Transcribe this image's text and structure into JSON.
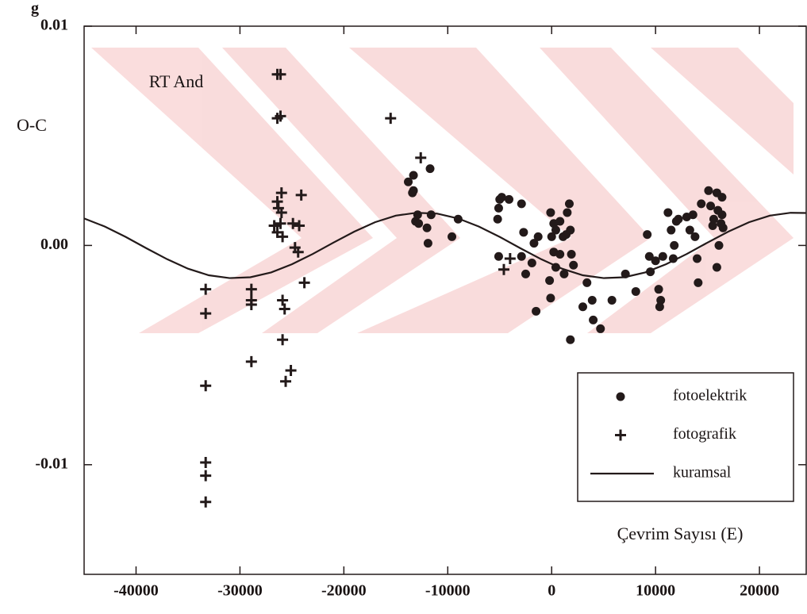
{
  "chart_data": {
    "type": "scatter",
    "title": "RT And",
    "y_label": "O-C",
    "y_unit": "g",
    "x_label": "Çevrim Sayısı (E)",
    "xlim": [
      -45000,
      24500
    ],
    "ylim": [
      -0.015,
      0.01
    ],
    "xticks": [
      -40000,
      -30000,
      -20000,
      -10000,
      0,
      10000,
      20000
    ],
    "yticks": [
      {
        "value": 0.01,
        "label": "0.01"
      },
      {
        "value": 0,
        "label": "0.00"
      },
      {
        "value": -0.01,
        "label": "-0.01"
      }
    ],
    "legend": "lower right",
    "series": [
      {
        "name": "fotoelektrik",
        "marker": "circle",
        "color": "#231a1a",
        "x": [
          -13800,
          -13300,
          -13300,
          -13400,
          -13100,
          -12800,
          -12900,
          -11700,
          -11600,
          -12000,
          -11900,
          -9600,
          -9000,
          -5000,
          -4800,
          -4100,
          -2900,
          -5100,
          -5200,
          -5100,
          -2700,
          -2900,
          -2500,
          -1700,
          -1500,
          -1300,
          -1900,
          -100,
          200,
          400,
          0,
          200,
          400,
          -200,
          -100,
          800,
          1100,
          800,
          1200,
          1500,
          1400,
          1700,
          1800,
          1900,
          2100,
          1800,
          3400,
          3000,
          3900,
          4000,
          4700,
          5800,
          7100,
          8100,
          9200,
          9400,
          9500,
          10000,
          10300,
          10500,
          10400,
          10700,
          11200,
          11500,
          11800,
          11700,
          12000,
          12200,
          13000,
          13300,
          13600,
          13800,
          14000,
          14100,
          14400,
          15100,
          15300,
          15500,
          15600,
          15900,
          16000,
          16100,
          16300,
          15900,
          16400,
          16500,
          16400
        ],
        "values": [
          0.0029,
          0.0032,
          0.0025,
          0.0024,
          0.0011,
          0.001,
          0.0014,
          0.0035,
          0.0014,
          0.0008,
          0.0001,
          0.0004,
          0.0012,
          0.0021,
          0.0022,
          0.0021,
          0.0019,
          0.0017,
          0.0012,
          -0.0005,
          0.0006,
          -0.0005,
          -0.0013,
          0.0001,
          -0.003,
          0.0004,
          -0.0008,
          0.0015,
          0.001,
          0.0007,
          0.0004,
          -0.0003,
          -0.001,
          -0.0016,
          -0.0024,
          0.0011,
          0.0004,
          -0.0004,
          -0.0013,
          0.0015,
          0.0005,
          0.0019,
          0.0007,
          -0.0004,
          -0.0009,
          -0.0043,
          -0.0017,
          -0.0028,
          -0.0025,
          -0.0034,
          -0.0038,
          -0.0025,
          -0.0013,
          -0.0021,
          0.0005,
          -0.0005,
          -0.0012,
          -0.0007,
          -0.002,
          -0.0025,
          -0.0028,
          -0.0005,
          0.0015,
          0.0007,
          0,
          -0.0006,
          0.0011,
          0.0012,
          0.0013,
          0.0007,
          0.0014,
          0.0004,
          -0.0006,
          -0.0017,
          0.0019,
          0.0025,
          0.0018,
          0.0009,
          0.0012,
          0.0024,
          0.0016,
          0,
          0.001,
          -0.001,
          0.0022,
          0.0008,
          0.0014
        ]
      },
      {
        "name": "fotografik",
        "marker": "plus",
        "color": "#231a1a",
        "x": [
          -33300,
          -33300,
          -33300,
          -33300,
          -33300,
          -33300,
          -28900,
          -28900,
          -28900,
          -28900,
          -26400,
          -26100,
          -26400,
          -26100,
          -26400,
          -26000,
          -26300,
          -26000,
          -26700,
          -26100,
          -26400,
          -25900,
          -25900,
          -25700,
          -25900,
          -25600,
          -25100,
          -24900,
          -24300,
          -24100,
          -24700,
          -24400,
          -23800,
          -15500,
          -12600,
          -4600,
          -4000
        ],
        "values": [
          -0.002,
          -0.0031,
          -0.0064,
          -0.0099,
          -0.0105,
          -0.0117,
          -0.002,
          -0.0025,
          -0.0027,
          -0.0053,
          0.0078,
          0.0078,
          0.0058,
          0.0059,
          0.002,
          0.0024,
          0.0017,
          0.0015,
          0.0009,
          0.001,
          0.0006,
          0.0004,
          -0.0025,
          -0.0029,
          -0.0043,
          -0.0062,
          -0.0057,
          0.001,
          0.0009,
          0.0023,
          -0.0001,
          -0.0003,
          -0.0017,
          0.0058,
          0.004,
          -0.0011,
          -0.0006
        ]
      },
      {
        "name": "kuramsal",
        "marker": "line",
        "color": "#231a1a",
        "x": [
          -45000,
          -43000,
          -41000,
          -39000,
          -37000,
          -35000,
          -33000,
          -31000,
          -29000,
          -27000,
          -25000,
          -23000,
          -21000,
          -19000,
          -17000,
          -15000,
          -13000,
          -11000,
          -9000,
          -7000,
          -5000,
          -3000,
          -1000,
          1000,
          3000,
          5000,
          7000,
          9000,
          11000,
          13000,
          15000,
          17000,
          19000,
          21000,
          23000,
          24500
        ],
        "values": [
          0.00123,
          0.00086,
          0.00039,
          -0.00013,
          -0.00063,
          -0.00106,
          -0.00136,
          -0.00149,
          -0.00145,
          -0.00123,
          -0.00086,
          -0.00039,
          0.00013,
          0.00063,
          0.00106,
          0.00136,
          0.00149,
          0.00145,
          0.00123,
          0.00086,
          0.00039,
          -0.00013,
          -0.00063,
          -0.00106,
          -0.00136,
          -0.00149,
          -0.00145,
          -0.00123,
          -0.00086,
          -0.00039,
          0.00013,
          0.00063,
          0.00106,
          0.00136,
          0.00149,
          0.00148
        ]
      }
    ]
  }
}
